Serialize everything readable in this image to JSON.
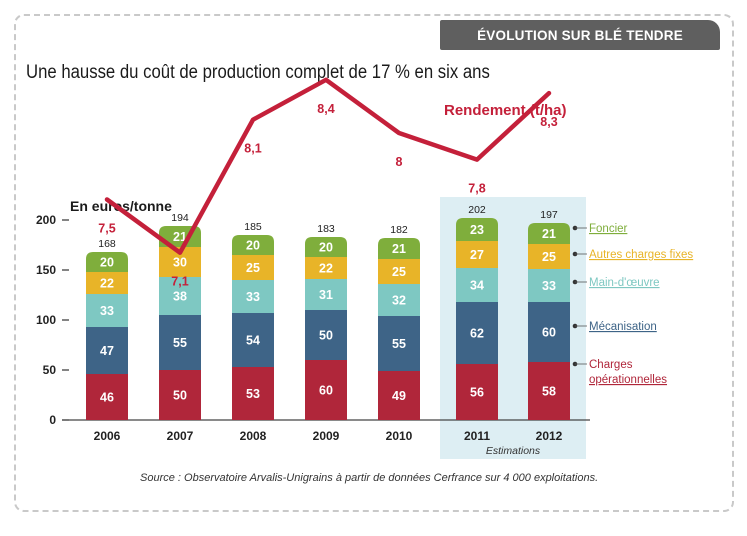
{
  "header": {
    "tag": "ÉVOLUTION SUR BLÉ TENDRE",
    "title": "Une hausse du coût de production complet de 17 % en six ans",
    "source": "Source : Observatoire Arvalis-Unigrains à partir de données Cerfrance sur 4 000 exploitations."
  },
  "chart_data": {
    "type": "bar",
    "stacked": true,
    "ylabel": "En euros/tonne",
    "ylim": [
      0,
      200
    ],
    "yticks": [
      0,
      50,
      100,
      150,
      200
    ],
    "categories": [
      "2006",
      "2007",
      "2008",
      "2009",
      "2010",
      "2011",
      "2012"
    ],
    "totals": [
      168,
      194,
      185,
      183,
      182,
      202,
      197
    ],
    "series": [
      {
        "name": "Charges opérationnelles",
        "color": "#b0263a",
        "values": [
          46,
          50,
          53,
          60,
          49,
          56,
          58
        ]
      },
      {
        "name": "Mécanisation",
        "color": "#3e6487",
        "values": [
          47,
          55,
          54,
          50,
          55,
          62,
          60
        ]
      },
      {
        "name": "Main-d'œuvre",
        "color": "#7ec8c2",
        "values": [
          33,
          38,
          33,
          31,
          32,
          34,
          33
        ]
      },
      {
        "name": "Autres charges fixes",
        "color": "#e8b428",
        "values": [
          22,
          30,
          25,
          22,
          25,
          27,
          25
        ]
      },
      {
        "name": "Foncier",
        "color": "#7fae3c",
        "values": [
          20,
          21,
          20,
          20,
          21,
          23,
          21
        ]
      }
    ],
    "line": {
      "name": "Rendement (t/ha)",
      "color": "#c4203a",
      "values": [
        7.5,
        7.1,
        8.1,
        8.4,
        8.0,
        7.8,
        8.3
      ],
      "labels": [
        "7,5",
        "7,1",
        "8,1",
        "8,4",
        "8",
        "7,8",
        "8,3"
      ]
    },
    "estimation": {
      "label": "Estimations",
      "categories": [
        "2011",
        "2012"
      ]
    },
    "legend_position": "right"
  }
}
